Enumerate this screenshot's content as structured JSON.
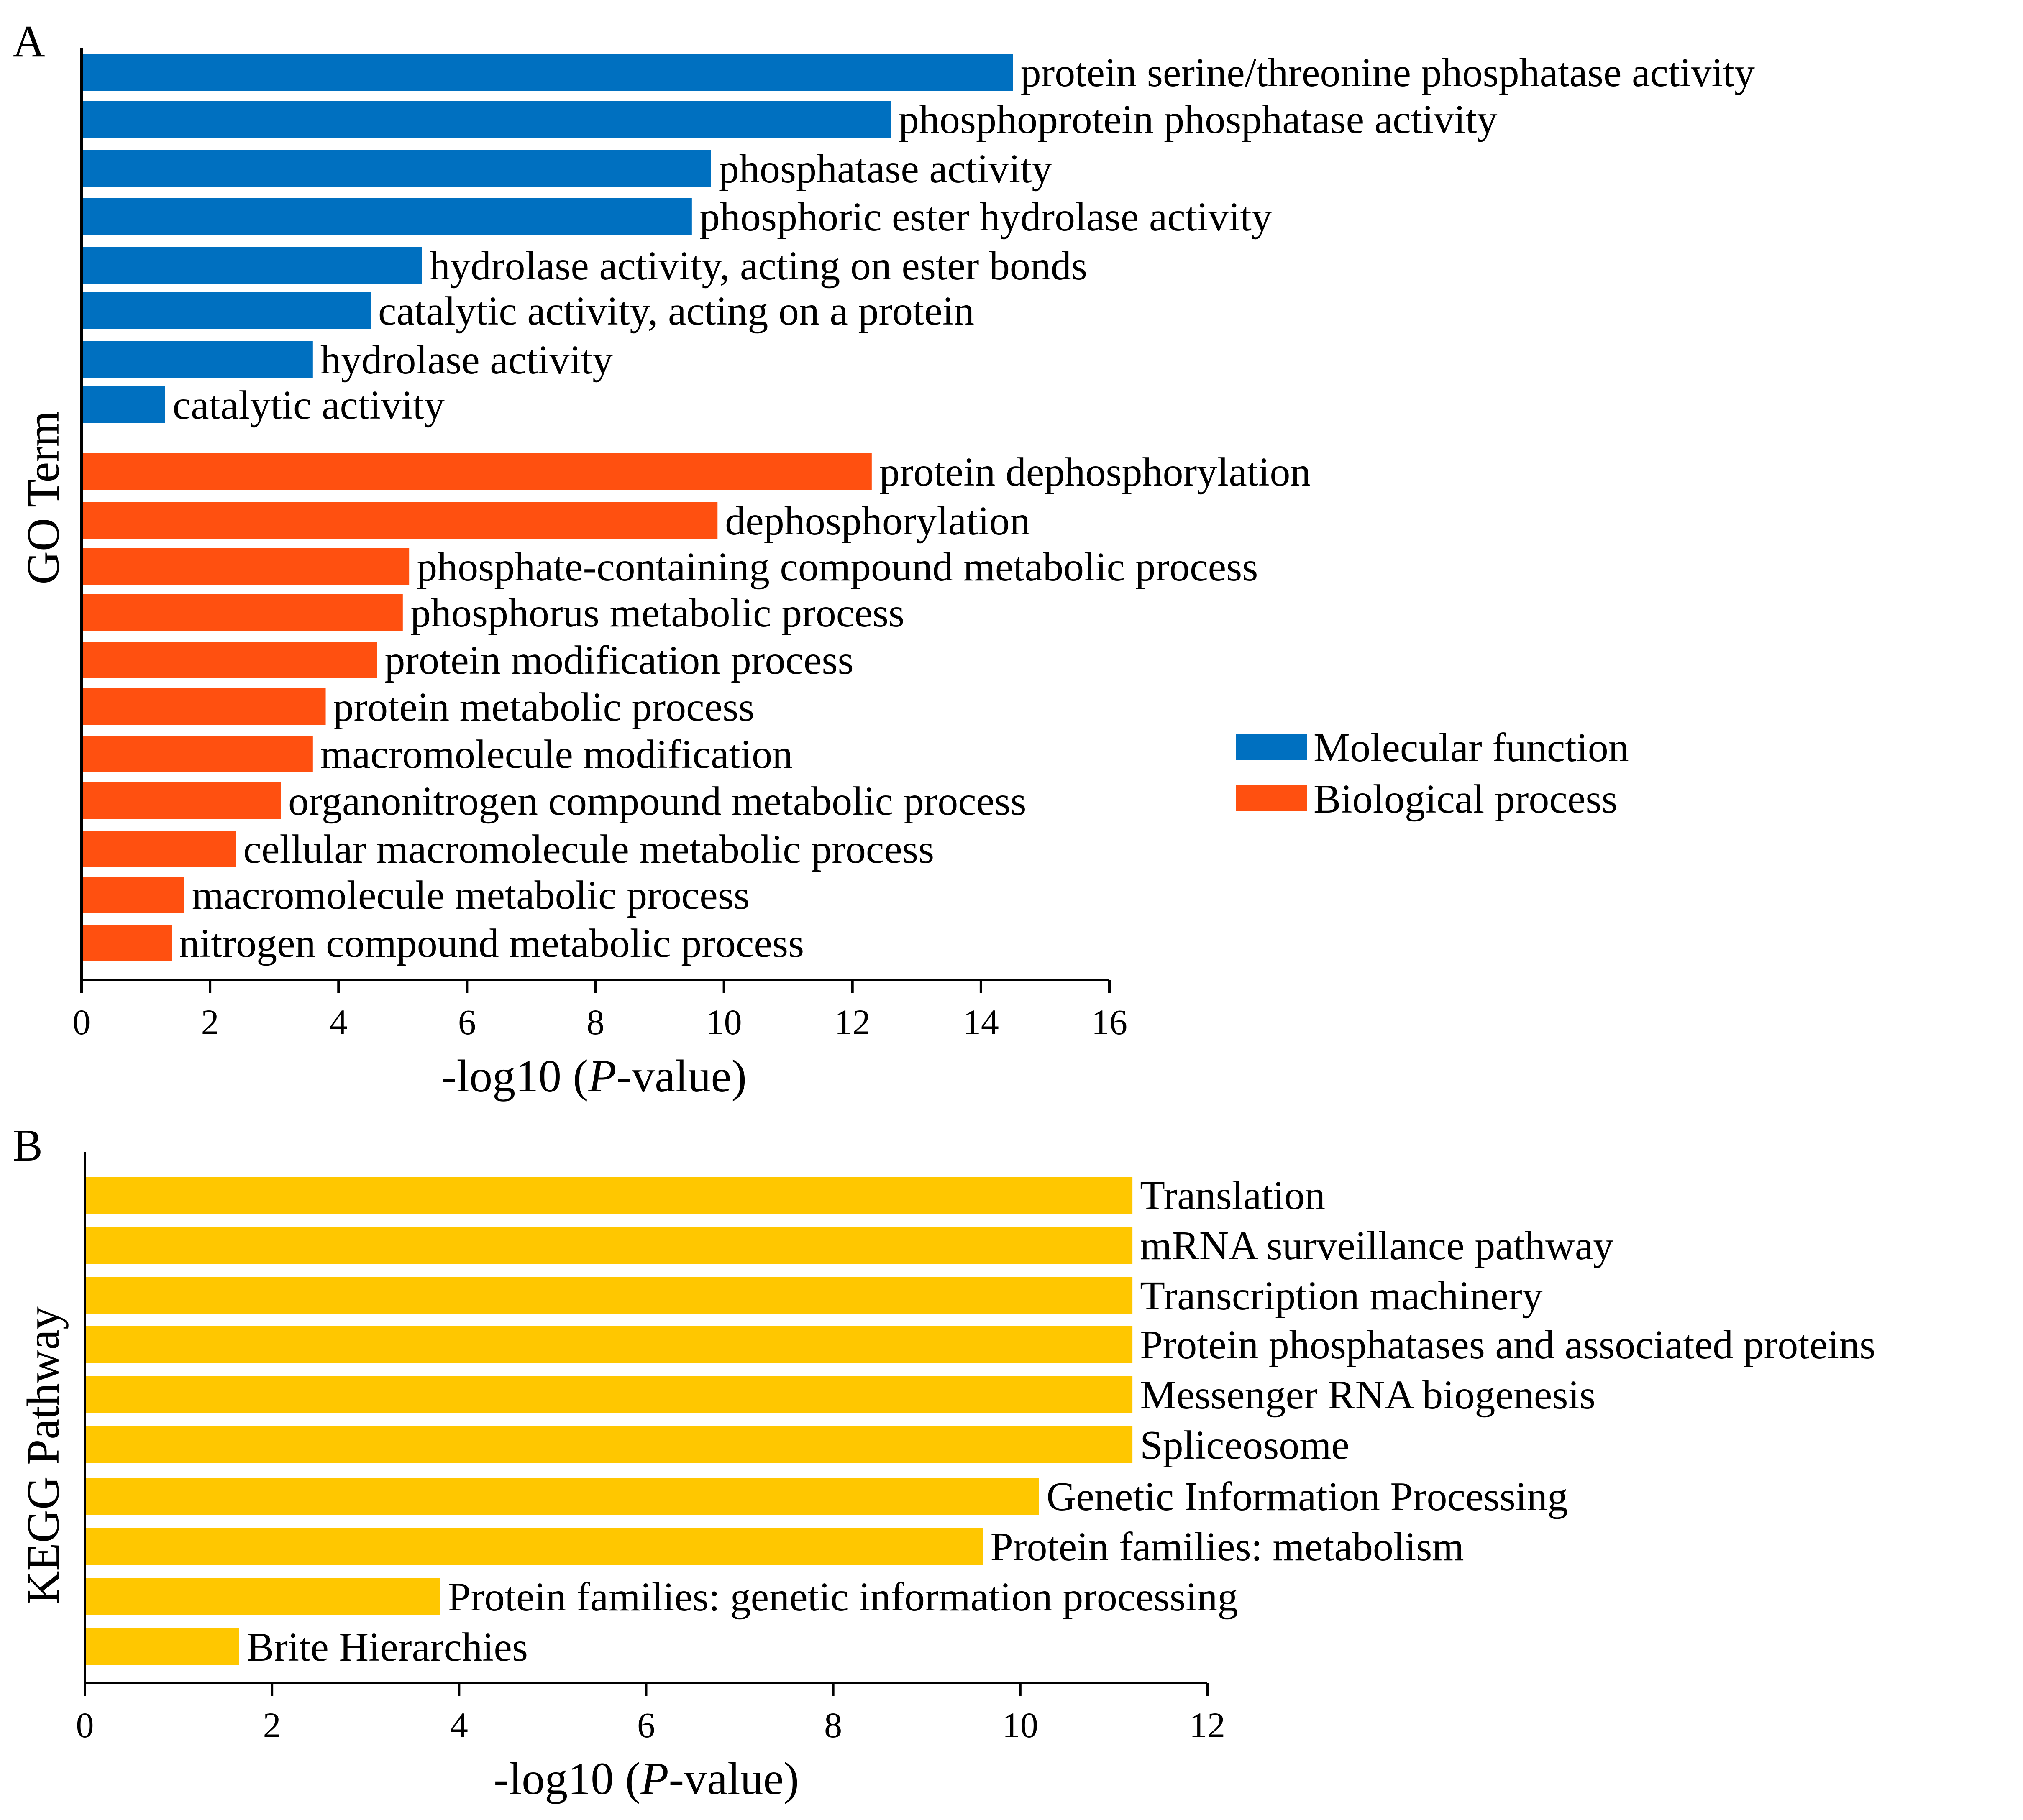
{
  "colors": {
    "molecular_function": "#0070C0",
    "biological_process": "#FF5010",
    "kegg": "#FFC700"
  },
  "panel_a": {
    "letter": "A",
    "y_axis_title": "GO Term",
    "x_axis_title_pre": "-log10 (",
    "x_axis_title_italic": "P",
    "x_axis_title_post": "-value)",
    "legend": [
      {
        "label": "Molecular function",
        "color_key": "molecular_function"
      },
      {
        "label": "Biological process",
        "color_key": "biological_process"
      }
    ]
  },
  "panel_b": {
    "letter": "B",
    "y_axis_title": "KEGG Pathway",
    "x_axis_title_pre": "-log10 (",
    "x_axis_title_italic": "P",
    "x_axis_title_post": "-value)"
  },
  "chart_data": [
    {
      "type": "bar",
      "orientation": "horizontal",
      "title": "",
      "ylabel": "GO Term",
      "xlabel": "-log10 (P-value)",
      "xlim": [
        0,
        16
      ],
      "xticks": [
        0,
        2,
        4,
        6,
        8,
        10,
        12,
        14,
        16
      ],
      "grid": false,
      "legend_position": "right",
      "series": [
        {
          "name": "Molecular function",
          "color_key": "molecular_function",
          "categories": [
            "protein serine/threonine phosphatase activity",
            "phosphoprotein phosphatase activity",
            "phosphatase activity",
            "phosphoric ester hydrolase activity",
            "hydrolase activity, acting on ester bonds",
            "catalytic activity, acting on a protein",
            "hydrolase activity",
            "catalytic activity"
          ],
          "values": [
            14.5,
            12.6,
            9.8,
            9.5,
            5.3,
            4.5,
            3.6,
            1.3
          ]
        },
        {
          "name": "Biological process",
          "color_key": "biological_process",
          "categories": [
            "protein dephosphorylation",
            "dephosphorylation",
            "phosphate-containing compound metabolic process",
            "phosphorus metabolic process",
            "protein modification process",
            "protein metabolic process",
            "macromolecule modification",
            "organonitrogen compound metabolic process",
            "cellular macromolecule metabolic process",
            "macromolecule metabolic process",
            "nitrogen compound metabolic process"
          ],
          "values": [
            12.3,
            9.9,
            5.1,
            5.0,
            4.6,
            3.8,
            3.6,
            3.1,
            2.4,
            1.6,
            1.4
          ]
        }
      ]
    },
    {
      "type": "bar",
      "orientation": "horizontal",
      "title": "",
      "ylabel": "KEGG Pathway",
      "xlabel": "-log10 (P-value)",
      "xlim": [
        0,
        12
      ],
      "xticks": [
        0,
        2,
        4,
        6,
        8,
        10,
        12
      ],
      "grid": false,
      "series": [
        {
          "name": "KEGG",
          "color_key": "kegg",
          "categories": [
            "Translation",
            "mRNA surveillance pathway",
            "Transcription machinery",
            "Protein phosphatases and associated proteins",
            "Messenger RNA biogenesis",
            "Spliceosome",
            "Genetic Information Processing",
            "Protein families: metabolism",
            "Protein families: genetic information processing",
            "Brite Hierarchies"
          ],
          "values": [
            11.2,
            11.2,
            11.2,
            11.2,
            11.2,
            11.2,
            10.2,
            9.6,
            3.8,
            1.65
          ]
        }
      ]
    }
  ]
}
